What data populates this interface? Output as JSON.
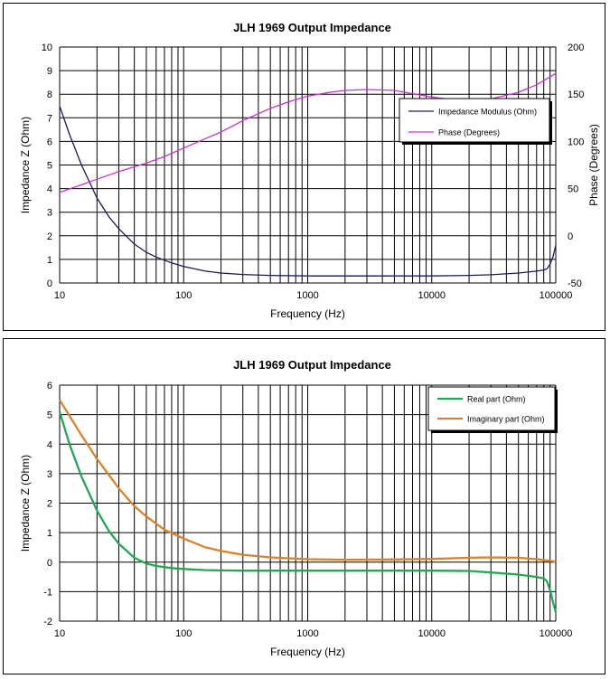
{
  "chart_data": [
    {
      "type": "line",
      "title": "JLH 1969 Output Impedance",
      "xlabel": "Frequency (Hz)",
      "ylabel": "Impedance Z (Ohm)",
      "y2label": "Phase (Degrees)",
      "xscale": "log",
      "xlim": [
        10,
        100000
      ],
      "ylim": [
        0,
        10
      ],
      "y2lim": [
        -50,
        200
      ],
      "xticks": [
        "10",
        "100",
        "1000",
        "10000",
        "100000"
      ],
      "yticks": [
        "0",
        "1",
        "2",
        "3",
        "4",
        "5",
        "6",
        "7",
        "8",
        "9",
        "10"
      ],
      "y2ticks": [
        "-50",
        "0",
        "50",
        "100",
        "150",
        "200"
      ],
      "grid": true,
      "legend_position": "top-right",
      "series": [
        {
          "name": "Impedance Modulus (Ohm)",
          "axis": "left",
          "color": "#1a1a5e",
          "x": [
            10,
            12,
            15,
            20,
            25,
            30,
            40,
            50,
            60,
            80,
            100,
            150,
            200,
            300,
            500,
            1000,
            2000,
            5000,
            10000,
            20000,
            30000,
            50000,
            70000,
            80000,
            85000,
            90000,
            95000,
            100000
          ],
          "y": [
            7.5,
            6.3,
            5.0,
            3.6,
            2.8,
            2.3,
            1.65,
            1.3,
            1.1,
            0.85,
            0.7,
            0.5,
            0.42,
            0.36,
            0.32,
            0.3,
            0.3,
            0.3,
            0.3,
            0.32,
            0.35,
            0.42,
            0.5,
            0.55,
            0.6,
            0.8,
            1.1,
            1.6
          ]
        },
        {
          "name": "Phase (Degrees)",
          "axis": "right",
          "color": "#cc33cc",
          "x": [
            10,
            15,
            20,
            30,
            50,
            70,
            100,
            150,
            200,
            300,
            500,
            700,
            1000,
            1500,
            2000,
            3000,
            5000,
            10000,
            15000,
            20000,
            30000,
            50000,
            70000,
            100000
          ],
          "y": [
            46,
            54,
            60,
            68,
            77,
            84,
            93,
            103,
            110,
            122,
            135,
            142,
            148,
            152,
            154,
            155,
            154,
            147,
            144,
            143,
            145,
            152,
            160,
            172
          ]
        }
      ]
    },
    {
      "type": "line",
      "title": "JLH 1969 Output Impedance",
      "xlabel": "Frequency (Hz)",
      "ylabel": "Impedance Z (Ohm)",
      "xscale": "log",
      "xlim": [
        10,
        100000
      ],
      "ylim": [
        -2,
        6
      ],
      "xticks": [
        "10",
        "100",
        "1000",
        "10000",
        "100000"
      ],
      "yticks": [
        "-2",
        "-1",
        "0",
        "1",
        "2",
        "3",
        "4",
        "5",
        "6"
      ],
      "grid": true,
      "legend_position": "top-right",
      "series": [
        {
          "name": "Real part (Ohm)",
          "color": "#22a854",
          "x": [
            10,
            12,
            15,
            20,
            25,
            30,
            40,
            50,
            60,
            80,
            100,
            150,
            200,
            300,
            500,
            1000,
            2000,
            5000,
            10000,
            20000,
            30000,
            50000,
            70000,
            80000,
            85000,
            90000,
            95000,
            100000
          ],
          "y": [
            5.1,
            4.0,
            2.9,
            1.75,
            1.05,
            0.62,
            0.15,
            -0.05,
            -0.13,
            -0.2,
            -0.23,
            -0.27,
            -0.28,
            -0.29,
            -0.29,
            -0.29,
            -0.29,
            -0.29,
            -0.29,
            -0.3,
            -0.35,
            -0.42,
            -0.5,
            -0.55,
            -0.65,
            -0.95,
            -1.35,
            -1.7
          ]
        },
        {
          "name": "Imaginary part (Ohm)",
          "color": "#d9822b",
          "x": [
            10,
            15,
            20,
            30,
            40,
            50,
            70,
            100,
            150,
            200,
            300,
            500,
            1000,
            2000,
            5000,
            10000,
            20000,
            30000,
            50000,
            70000,
            100000
          ],
          "y": [
            5.5,
            4.3,
            3.5,
            2.5,
            1.9,
            1.55,
            1.1,
            0.8,
            0.5,
            0.38,
            0.25,
            0.16,
            0.1,
            0.08,
            0.09,
            0.11,
            0.15,
            0.16,
            0.15,
            0.1,
            0.02
          ]
        }
      ]
    }
  ]
}
